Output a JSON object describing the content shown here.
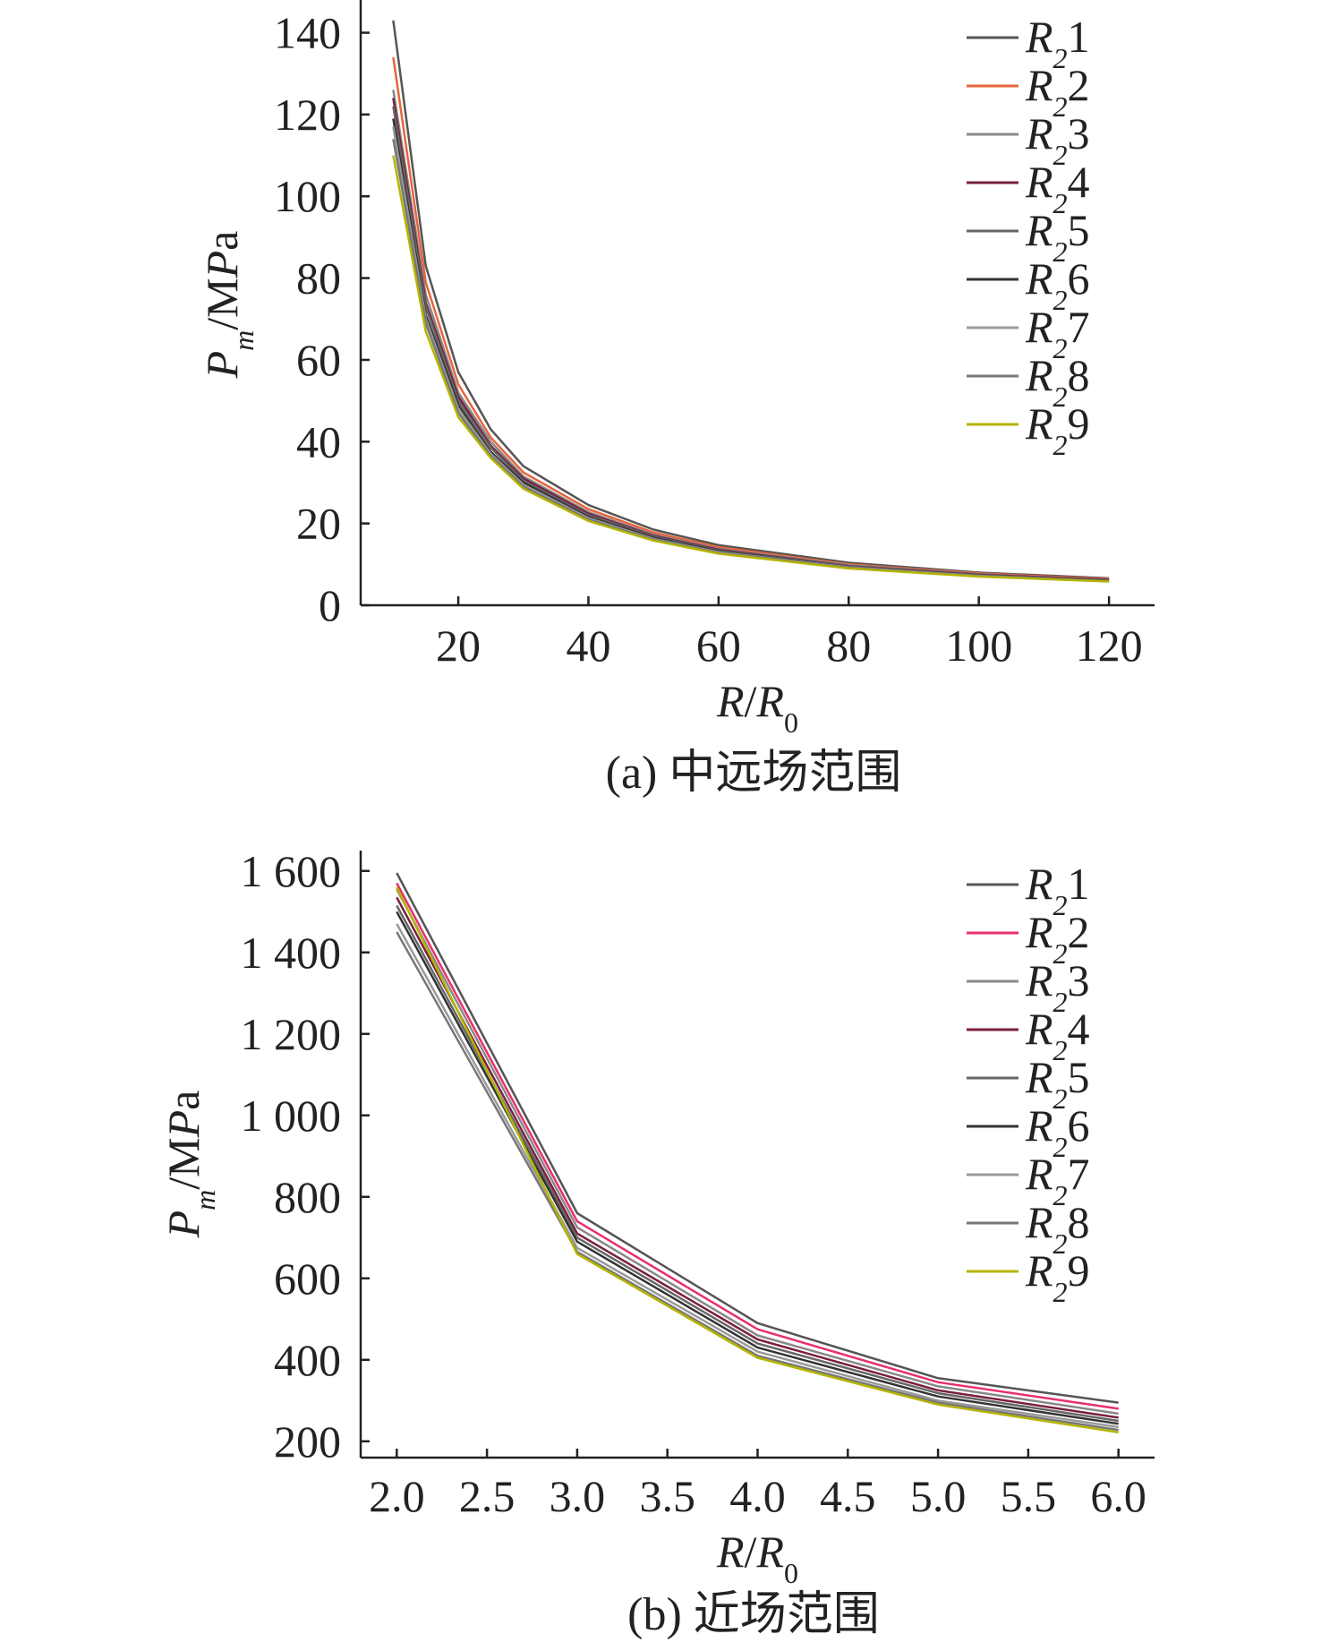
{
  "chart_data": [
    {
      "type": "line",
      "panel_caption": "(a) 中远场范围",
      "xlabel": "R/R₀",
      "ylabel": "Pₘ/MPa",
      "xlim": [
        5,
        127
      ],
      "ylim": [
        0,
        148
      ],
      "xticks": [
        20,
        40,
        60,
        80,
        100,
        120
      ],
      "yticks": [
        0,
        20,
        40,
        60,
        80,
        100,
        120,
        140
      ],
      "ytick_labels": [
        "0",
        "20",
        "40",
        "60",
        "80",
        "100",
        "120",
        "140"
      ],
      "xtick_labels": [
        "20",
        "40",
        "60",
        "80",
        "100",
        "120"
      ],
      "legend_position": "top-right",
      "x": [
        10,
        15,
        20,
        25,
        30,
        40,
        50,
        60,
        80,
        100,
        120
      ],
      "series": [
        {
          "name": "R₂1",
          "color": "#555555",
          "values": [
            143,
            83,
            57,
            43,
            34,
            24.5,
            18.5,
            14.7,
            10.4,
            8.0,
            6.6
          ]
        },
        {
          "name": "R₂2",
          "color": "#e8643c",
          "values": [
            134,
            79,
            54,
            41,
            32.5,
            23.5,
            17.8,
            14.2,
            10.0,
            7.8,
            6.4
          ]
        },
        {
          "name": "R₂3",
          "color": "#888888",
          "values": [
            126,
            76,
            52,
            40,
            31.5,
            22.8,
            17.3,
            13.8,
            9.8,
            7.6,
            6.2
          ]
        },
        {
          "name": "R₂4",
          "color": "#7a1f3f",
          "values": [
            124,
            74,
            51,
            39,
            31,
            22.4,
            17.0,
            13.6,
            9.6,
            7.5,
            6.2
          ]
        },
        {
          "name": "R₂5",
          "color": "#666666",
          "values": [
            122,
            73,
            50,
            38.5,
            30.5,
            22.0,
            16.8,
            13.4,
            9.5,
            7.4,
            6.1
          ]
        },
        {
          "name": "R₂6",
          "color": "#333333",
          "values": [
            119,
            71,
            49,
            37.5,
            30,
            21.6,
            16.5,
            13.2,
            9.4,
            7.3,
            6.0
          ]
        },
        {
          "name": "R₂7",
          "color": "#999999",
          "values": [
            117,
            70,
            48,
            37,
            29.5,
            21.3,
            16.2,
            13.0,
            9.3,
            7.2,
            5.9
          ]
        },
        {
          "name": "R₂8",
          "color": "#777777",
          "values": [
            114,
            69,
            47,
            36.5,
            29,
            21.0,
            16.0,
            12.8,
            9.2,
            7.1,
            5.9
          ]
        },
        {
          "name": "R₂9",
          "color": "#b4b400",
          "values": [
            110,
            67,
            46,
            36,
            28.5,
            20.6,
            15.8,
            12.6,
            9.0,
            7.0,
            5.8
          ]
        }
      ]
    },
    {
      "type": "line",
      "panel_caption": "(b) 近场范围",
      "xlabel": "R/R₀",
      "ylabel": "Pₘ/MPa",
      "xlim": [
        1.8,
        6.2
      ],
      "ylim": [
        160,
        1650
      ],
      "xticks": [
        2.0,
        2.5,
        3.0,
        3.5,
        4.0,
        4.5,
        5.0,
        5.5,
        6.0
      ],
      "xtick_labels": [
        "2.0",
        "2.5",
        "3.0",
        "3.5",
        "4.0",
        "4.5",
        "5.0",
        "5.5",
        "6.0"
      ],
      "yticks": [
        200,
        400,
        600,
        800,
        1000,
        1200,
        1400,
        1600
      ],
      "ytick_labels": [
        "200",
        "400",
        "600",
        "800",
        "1 000",
        "1 200",
        "1 400",
        "1 600"
      ],
      "legend_position": "top-right",
      "x": [
        2,
        3,
        4,
        5,
        6
      ],
      "series": [
        {
          "name": "R₂1",
          "color": "#555555",
          "values": [
            1595,
            760,
            490,
            355,
            295
          ]
        },
        {
          "name": "R₂2",
          "color": "#e8306c",
          "values": [
            1570,
            740,
            475,
            345,
            280
          ]
        },
        {
          "name": "R₂3",
          "color": "#888888",
          "values": [
            1555,
            725,
            460,
            335,
            268
          ]
        },
        {
          "name": "R₂4",
          "color": "#7a1f3f",
          "values": [
            1535,
            710,
            450,
            325,
            258
          ]
        },
        {
          "name": "R₂5",
          "color": "#666666",
          "values": [
            1515,
            700,
            440,
            318,
            250
          ]
        },
        {
          "name": "R₂6",
          "color": "#333333",
          "values": [
            1500,
            690,
            430,
            310,
            243
          ]
        },
        {
          "name": "R₂7",
          "color": "#999999",
          "values": [
            1470,
            675,
            420,
            300,
            235
          ]
        },
        {
          "name": "R₂8",
          "color": "#777777",
          "values": [
            1450,
            665,
            410,
            295,
            228
          ]
        },
        {
          "name": "R₂9",
          "color": "#b4b400",
          "values": [
            1560,
            660,
            405,
            290,
            222
          ]
        }
      ]
    }
  ]
}
